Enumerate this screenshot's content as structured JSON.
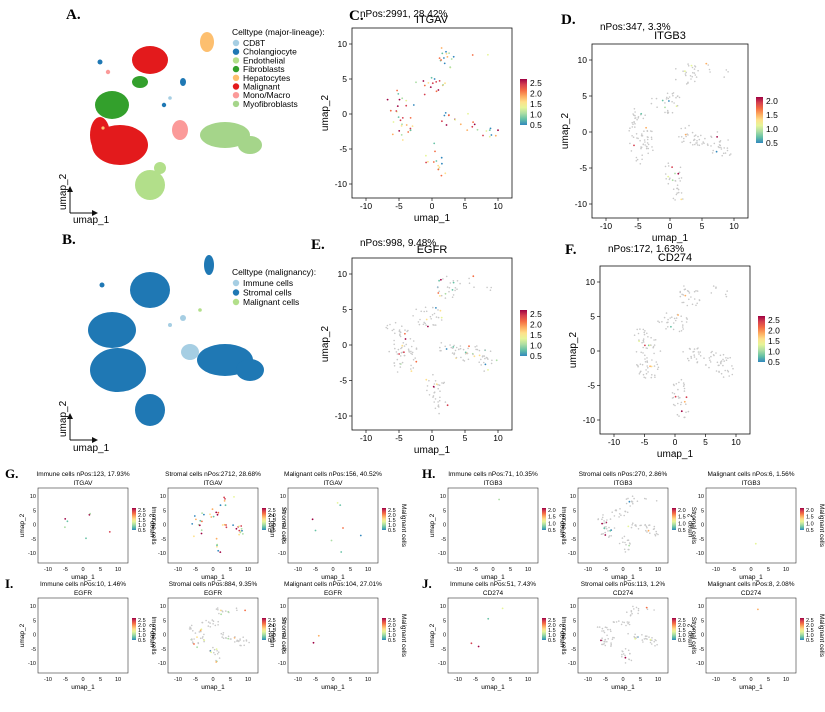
{
  "letters": {
    "A": "A.",
    "B": "B.",
    "C": "C.",
    "D": "D.",
    "E": "E.",
    "F": "F.",
    "G": "G.",
    "H": "H.",
    "I": "I.",
    "J": "J."
  },
  "panelA": {
    "legend_title": "Celltype (major-lineage):",
    "legend": [
      {
        "label": "CD8T",
        "color": "#a6cee3"
      },
      {
        "label": "Cholangiocyte",
        "color": "#1f78b4"
      },
      {
        "label": "Endothelial",
        "color": "#b2df8a"
      },
      {
        "label": "Fibroblasts",
        "color": "#33a02c"
      },
      {
        "label": "Hepatocytes",
        "color": "#fdbf6f"
      },
      {
        "label": "Malignant",
        "color": "#e31a1c"
      },
      {
        "label": "Mono/Macro",
        "color": "#fb9a99"
      },
      {
        "label": "Myofibroblasts",
        "color": "#a5d58a"
      }
    ],
    "axis_x": "umap_1",
    "axis_y": "umap_2"
  },
  "panelB": {
    "legend_title": "Celltype (malignancy):",
    "legend": [
      {
        "label": "Immune cells",
        "color": "#a6cee3"
      },
      {
        "label": "Stromal cells",
        "color": "#1f78b4"
      },
      {
        "label": "Malignant cells",
        "color": "#b2df8a"
      }
    ],
    "axis_x": "umap_1",
    "axis_y": "umap_2"
  },
  "big_panels": [
    {
      "id": "C",
      "npos": "nPos:2991, 28.42%",
      "title": "ITGAV",
      "legend_ticks": [
        "2.5",
        "2.0",
        "1.5",
        "1.0",
        "0.5"
      ],
      "yticks": [
        "10",
        "5",
        "0",
        "-5",
        "-10"
      ],
      "xticks": [
        "-10",
        "-5",
        "0",
        "5",
        "10"
      ],
      "xlabel": "umap_1",
      "ylabel": "umap_2"
    },
    {
      "id": "D",
      "npos": "nPos:347, 3.3%",
      "title": "ITGB3",
      "legend_ticks": [
        "2.0",
        "1.5",
        "1.0",
        "0.5"
      ],
      "yticks": [
        "10",
        "5",
        "0",
        "-5",
        "-10"
      ],
      "xticks": [
        "-10",
        "-5",
        "0",
        "5",
        "10"
      ],
      "xlabel": "umap_1",
      "ylabel": "umap_2"
    },
    {
      "id": "E",
      "npos": "nPos:998, 9.48%",
      "title": "EGFR",
      "legend_ticks": [
        "2.5",
        "2.0",
        "1.5",
        "1.0",
        "0.5"
      ],
      "yticks": [
        "10",
        "5",
        "0",
        "-5",
        "-10"
      ],
      "xticks": [
        "-10",
        "-5",
        "0",
        "5",
        "10"
      ],
      "xlabel": "umap_1",
      "ylabel": "umap_2"
    },
    {
      "id": "F",
      "npos": "nPos:172, 1.63%",
      "title": "CD274",
      "legend_ticks": [
        "2.5",
        "2.0",
        "1.5",
        "1.0",
        "0.5"
      ],
      "yticks": [
        "10",
        "5",
        "0",
        "-5",
        "-10"
      ],
      "xticks": [
        "-10",
        "-5",
        "0",
        "5",
        "10"
      ],
      "xlabel": "umap_1",
      "ylabel": "umap_2"
    }
  ],
  "small_panels": [
    {
      "group": "G",
      "header": "Immune cells nPos:123, 17.93%",
      "gene": "ITGAV",
      "side": "Immune cells",
      "legend_ticks": [
        "2.5",
        "2.0",
        "1.5",
        "1.0",
        "0.5"
      ]
    },
    {
      "group": "G",
      "header": "Stromal cells nPos:2712, 28.68%",
      "gene": "ITGAV",
      "side": "Stromal cells",
      "legend_ticks": [
        "2.5",
        "2.0",
        "1.5",
        "1.0",
        "0.5"
      ]
    },
    {
      "group": "G",
      "header": "Malignant cells nPos:156, 40.52%",
      "gene": "ITGAV",
      "side": "Malignant cells",
      "legend_ticks": [
        "2.5",
        "2.0",
        "1.5",
        "1.0",
        "0.5"
      ]
    },
    {
      "group": "H",
      "header": "Immune cells nPos:71, 10.35%",
      "gene": "ITGB3",
      "side": "Immune cells",
      "legend_ticks": [
        "2.0",
        "1.5",
        "1.0",
        "0.5"
      ]
    },
    {
      "group": "H",
      "header": "Stromal cells nPos:270, 2.86%",
      "gene": "ITGB3",
      "side": "Stromal cells",
      "legend_ticks": [
        "2.0",
        "1.5",
        "1.0",
        "0.5"
      ]
    },
    {
      "group": "H",
      "header": "Malignant cells nPos:6, 1.56%",
      "gene": "ITGB3",
      "side": "Malignant cells",
      "legend_ticks": [
        "2.0",
        "1.5",
        "1.0",
        "0.5"
      ]
    },
    {
      "group": "I",
      "header": "Immune cells nPos:10, 1.46%",
      "gene": "EGFR",
      "side": "Immune cells",
      "legend_ticks": [
        "2.5",
        "2.0",
        "1.5",
        "1.0",
        "0.5"
      ]
    },
    {
      "group": "I",
      "header": "Stromal cells nPos:884, 9.35%",
      "gene": "EGFR",
      "side": "Stromal cells",
      "legend_ticks": [
        "2.5",
        "2.0",
        "1.5",
        "1.0",
        "0.5"
      ]
    },
    {
      "group": "I",
      "header": "Malignant cells nPos:104, 27.01%",
      "gene": "EGFR",
      "side": "Malignant cells",
      "legend_ticks": [
        "2.5",
        "2.0",
        "1.5",
        "1.0",
        "0.5"
      ]
    },
    {
      "group": "J",
      "header": "Immune cells nPos:51, 7.43%",
      "gene": "CD274",
      "side": "Immune cells",
      "legend_ticks": [
        "2.5",
        "2.0",
        "1.5",
        "1.0",
        "0.5"
      ]
    },
    {
      "group": "J",
      "header": "Stromal cells nPos:113, 1.2%",
      "gene": "CD274",
      "side": "Stromal cells",
      "legend_ticks": [
        "2.5",
        "2.0",
        "1.5",
        "1.0",
        "0.5"
      ]
    },
    {
      "group": "J",
      "header": "Malignant cells nPos:8, 2.08%",
      "gene": "CD274",
      "side": "Malignant cells",
      "legend_ticks": [
        "2.5",
        "2.0",
        "1.5",
        "1.0",
        "0.5"
      ]
    }
  ],
  "small_axes": {
    "yticks": [
      "10",
      "5",
      "0",
      "-5",
      "-10"
    ],
    "xticks": [
      "-10",
      "-5",
      "0",
      "5",
      "10"
    ],
    "xlabel": "umap_1",
    "ylabel": "umap_2"
  },
  "colorbar_stops": [
    "#9e0142",
    "#d53e4f",
    "#f46d43",
    "#fdae61",
    "#fee08b",
    "#e6f598",
    "#abdda4",
    "#66c2a5",
    "#3288bd",
    "#5e4fa2"
  ]
}
